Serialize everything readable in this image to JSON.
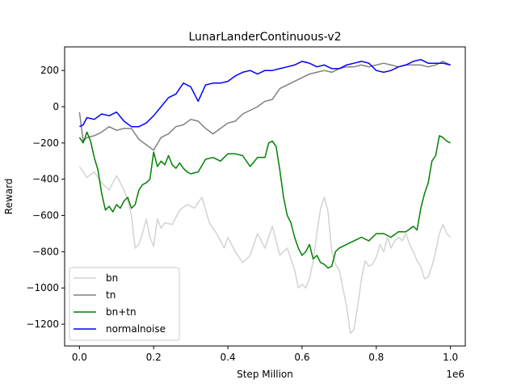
{
  "chart_data": {
    "type": "line",
    "title": "LunarLanderContinuous-v2",
    "xlabel": "Step Million",
    "ylabel": "Reward",
    "x_offset_label": "1e6",
    "xlim": [
      -40000,
      1040000
    ],
    "ylim": [
      -1320,
      330
    ],
    "xticks": [
      0,
      200000,
      400000,
      600000,
      800000,
      1000000
    ],
    "xtick_labels": [
      "0.0",
      "0.2",
      "0.4",
      "0.6",
      "0.8",
      "1.0"
    ],
    "yticks": [
      -1200,
      -1000,
      -800,
      -600,
      -400,
      -200,
      0,
      200
    ],
    "ytick_labels": [
      "−1200",
      "−1000",
      "−800",
      "−600",
      "−400",
      "−200",
      "0",
      "200"
    ],
    "grid": false,
    "legend_position": "lower-left",
    "series": [
      {
        "name": "bn",
        "color": "#d3d3d3",
        "x": [
          0,
          20000,
          40000,
          60000,
          80000,
          100000,
          110000,
          120000,
          130000,
          140000,
          150000,
          160000,
          170000,
          180000,
          190000,
          200000,
          210000,
          220000,
          230000,
          250000,
          270000,
          290000,
          310000,
          330000,
          350000,
          370000,
          390000,
          400000,
          420000,
          440000,
          460000,
          480000,
          500000,
          520000,
          540000,
          560000,
          580000,
          590000,
          600000,
          610000,
          620000,
          630000,
          640000,
          650000,
          660000,
          670000,
          680000,
          690000,
          700000,
          710000,
          720000,
          730000,
          740000,
          750000,
          760000,
          770000,
          780000,
          790000,
          800000,
          810000,
          820000,
          830000,
          840000,
          850000,
          860000,
          870000,
          880000,
          890000,
          900000,
          910000,
          920000,
          930000,
          940000,
          950000,
          960000,
          970000,
          980000,
          990000,
          1000000
        ],
        "y": [
          -330,
          -390,
          -360,
          -420,
          -460,
          -380,
          -420,
          -460,
          -520,
          -600,
          -780,
          -760,
          -700,
          -620,
          -720,
          -770,
          -620,
          -670,
          -640,
          -650,
          -570,
          -540,
          -560,
          -500,
          -640,
          -700,
          -780,
          -720,
          -800,
          -860,
          -820,
          -700,
          -780,
          -660,
          -820,
          -780,
          -900,
          -1000,
          -980,
          -1000,
          -950,
          -850,
          -700,
          -560,
          -500,
          -580,
          -800,
          -870,
          -900,
          -1000,
          -1100,
          -1250,
          -1230,
          -1100,
          -950,
          -850,
          -880,
          -870,
          -830,
          -760,
          -800,
          -720,
          -780,
          -740,
          -720,
          -740,
          -700,
          -760,
          -800,
          -850,
          -880,
          -950,
          -940,
          -880,
          -800,
          -700,
          -650,
          -700,
          -720
        ]
      },
      {
        "name": "tn",
        "color": "#808080",
        "x": [
          0,
          10000,
          20000,
          40000,
          60000,
          80000,
          100000,
          120000,
          140000,
          160000,
          180000,
          200000,
          220000,
          240000,
          260000,
          280000,
          300000,
          320000,
          340000,
          360000,
          380000,
          400000,
          420000,
          440000,
          460000,
          480000,
          500000,
          520000,
          540000,
          560000,
          580000,
          600000,
          620000,
          640000,
          660000,
          680000,
          700000,
          720000,
          740000,
          760000,
          780000,
          800000,
          820000,
          840000,
          860000,
          880000,
          900000,
          920000,
          940000,
          960000,
          980000,
          1000000
        ],
        "y": [
          -30,
          -190,
          -170,
          -160,
          -140,
          -110,
          -130,
          -120,
          -120,
          -180,
          -210,
          -240,
          -170,
          -150,
          -110,
          -100,
          -70,
          -80,
          -120,
          -150,
          -120,
          -90,
          -80,
          -40,
          -20,
          0,
          30,
          40,
          100,
          120,
          140,
          160,
          180,
          190,
          200,
          190,
          210,
          220,
          220,
          230,
          220,
          230,
          240,
          230,
          220,
          230,
          230,
          230,
          220,
          230,
          250,
          230
        ]
      },
      {
        "name": "bn+tn",
        "color": "#008000",
        "x": [
          0,
          10000,
          20000,
          30000,
          40000,
          50000,
          60000,
          70000,
          80000,
          90000,
          100000,
          110000,
          120000,
          130000,
          140000,
          150000,
          160000,
          170000,
          180000,
          190000,
          200000,
          210000,
          220000,
          230000,
          240000,
          250000,
          260000,
          270000,
          280000,
          290000,
          300000,
          320000,
          340000,
          360000,
          380000,
          400000,
          420000,
          440000,
          460000,
          480000,
          500000,
          510000,
          520000,
          530000,
          540000,
          550000,
          560000,
          570000,
          580000,
          590000,
          600000,
          610000,
          620000,
          630000,
          640000,
          650000,
          660000,
          670000,
          680000,
          690000,
          700000,
          720000,
          740000,
          760000,
          780000,
          800000,
          820000,
          840000,
          860000,
          880000,
          900000,
          910000,
          920000,
          930000,
          940000,
          950000,
          960000,
          970000,
          980000,
          990000,
          1000000
        ],
        "y": [
          -170,
          -200,
          -140,
          -190,
          -280,
          -350,
          -480,
          -570,
          -550,
          -580,
          -540,
          -560,
          -520,
          -500,
          -560,
          -540,
          -460,
          -430,
          -420,
          -400,
          -250,
          -330,
          -300,
          -320,
          -270,
          -320,
          -340,
          -310,
          -340,
          -360,
          -370,
          -360,
          -290,
          -280,
          -300,
          -260,
          -260,
          -270,
          -330,
          -280,
          -280,
          -200,
          -190,
          -220,
          -350,
          -500,
          -600,
          -640,
          -720,
          -780,
          -820,
          -800,
          -760,
          -840,
          -820,
          -860,
          -870,
          -890,
          -880,
          -800,
          -780,
          -760,
          -740,
          -720,
          -740,
          -700,
          -700,
          -720,
          -690,
          -690,
          -660,
          -680,
          -560,
          -480,
          -420,
          -300,
          -270,
          -160,
          -170,
          -190,
          -200
        ]
      },
      {
        "name": "normalnoise",
        "color": "#0000ff",
        "x": [
          0,
          10000,
          20000,
          40000,
          60000,
          80000,
          100000,
          120000,
          140000,
          160000,
          180000,
          200000,
          220000,
          240000,
          260000,
          280000,
          300000,
          320000,
          340000,
          360000,
          380000,
          400000,
          420000,
          440000,
          460000,
          480000,
          500000,
          520000,
          540000,
          560000,
          580000,
          600000,
          620000,
          640000,
          660000,
          680000,
          700000,
          720000,
          740000,
          760000,
          780000,
          800000,
          820000,
          840000,
          860000,
          880000,
          900000,
          920000,
          940000,
          960000,
          980000,
          1000000
        ],
        "y": [
          -110,
          -100,
          -60,
          -70,
          -40,
          -50,
          -30,
          -80,
          -110,
          -110,
          -90,
          -50,
          0,
          50,
          70,
          130,
          110,
          30,
          120,
          130,
          130,
          140,
          170,
          190,
          200,
          180,
          200,
          200,
          210,
          220,
          230,
          250,
          240,
          220,
          230,
          210,
          210,
          230,
          240,
          250,
          240,
          200,
          190,
          200,
          220,
          230,
          250,
          260,
          240,
          240,
          240,
          230
        ]
      }
    ]
  }
}
